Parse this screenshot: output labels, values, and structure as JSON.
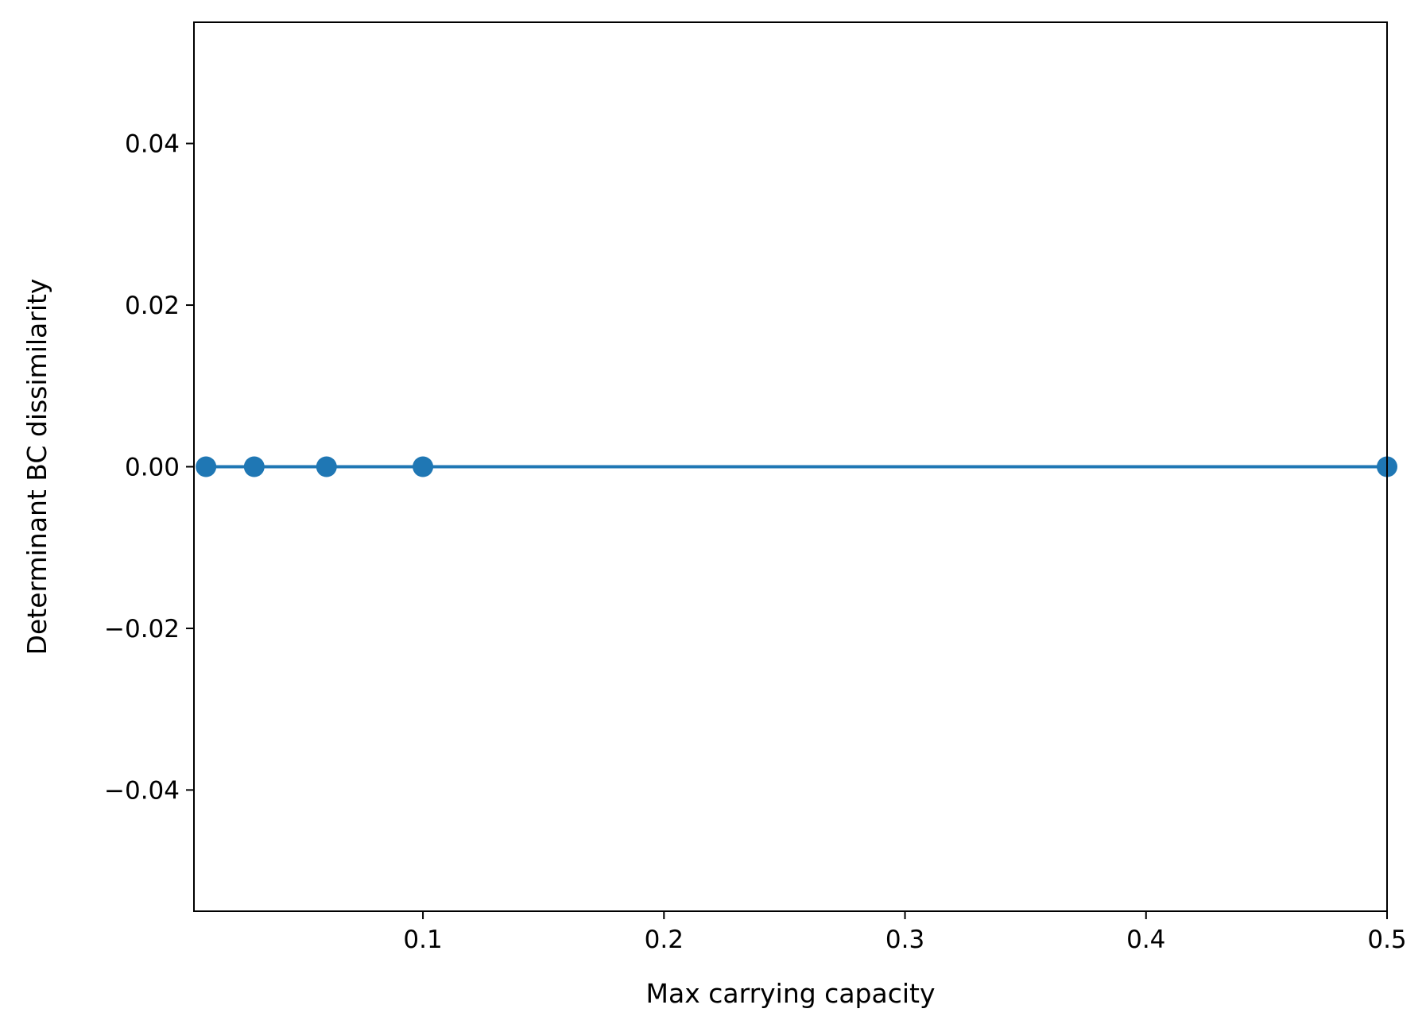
{
  "chart_data": {
    "type": "line",
    "title": "",
    "xlabel": "Max carrying capacity",
    "ylabel": "Determinant BC dissimilarity",
    "xlim": [
      0.005,
      0.5
    ],
    "ylim": [
      -0.055,
      0.055
    ],
    "x_ticks": [
      0.1,
      0.2,
      0.3,
      0.4,
      0.5
    ],
    "x_tick_labels": [
      "0.1",
      "0.2",
      "0.3",
      "0.4",
      "0.5"
    ],
    "y_ticks": [
      0.04,
      0.02,
      0.0,
      -0.02,
      -0.04
    ],
    "y_tick_labels": [
      "0.04",
      "0.02",
      "0.00",
      "−0.02",
      "−0.04"
    ],
    "grid": false,
    "series": [
      {
        "color": "#1f77b4",
        "marker": "circle",
        "x": [
          0.01,
          0.03,
          0.06,
          0.1,
          0.5
        ],
        "y": [
          0.0,
          0.0,
          0.0,
          0.0,
          0.0
        ]
      }
    ]
  }
}
